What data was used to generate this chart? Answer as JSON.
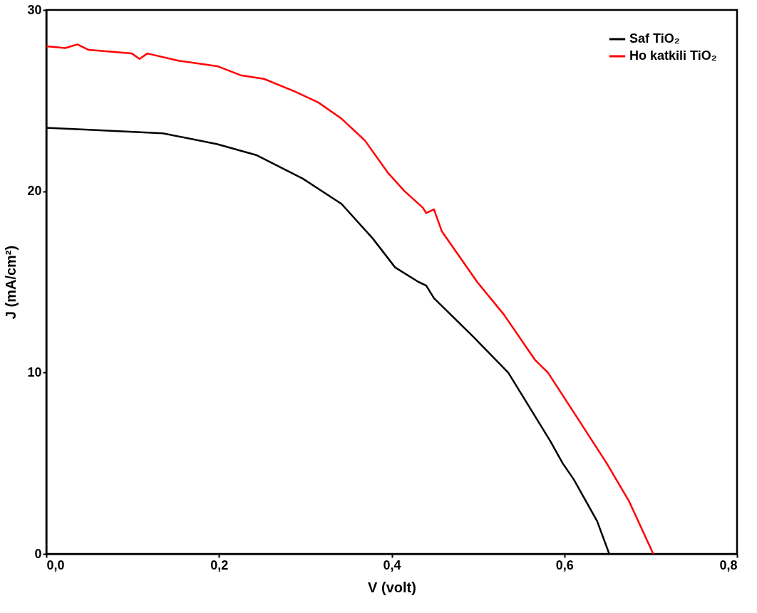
{
  "chart_data": {
    "type": "line",
    "xlabel": "V (volt)",
    "ylabel": "J (mA/cm²)",
    "xlim": [
      0,
      0.8
    ],
    "ylim": [
      0,
      30
    ],
    "xticks": [
      {
        "value": 0,
        "label": "0,0"
      },
      {
        "value": 0.2,
        "label": "0,2"
      },
      {
        "value": 0.4,
        "label": "0,4"
      },
      {
        "value": 0.6,
        "label": "0,6"
      },
      {
        "value": 0.8,
        "label": "0,8"
      }
    ],
    "yticks": [
      0,
      10,
      20,
      30
    ],
    "grid": false,
    "legend": "top right",
    "marker": "none",
    "line_style": "solid",
    "series": [
      {
        "name": "Saf TiO₂",
        "color": "#000000",
        "x": [
          0,
          0.045,
          0.135,
          0.198,
          0.243,
          0.297,
          0.342,
          0.378,
          0.404,
          0.431,
          0.44,
          0.449,
          0.494,
          0.535,
          0.584,
          0.598,
          0.611,
          0.638,
          0.652
        ],
        "values": [
          23.5,
          23.4,
          23.2,
          22.6,
          22.0,
          20.7,
          19.3,
          17.4,
          15.8,
          15.0,
          14.8,
          14.1,
          12.0,
          10.0,
          6.2,
          5.0,
          4.1,
          1.8,
          0
        ]
      },
      {
        "name": "Ho katkili TiO₂",
        "color": "#ff0000",
        "x": [
          0,
          0.022,
          0.036,
          0.049,
          0.099,
          0.108,
          0.117,
          0.153,
          0.198,
          0.225,
          0.252,
          0.288,
          0.315,
          0.342,
          0.369,
          0.396,
          0.415,
          0.436,
          0.44,
          0.449,
          0.458,
          0.499,
          0.53,
          0.566,
          0.581,
          0.611,
          0.649,
          0.675,
          0.703
        ],
        "values": [
          28.0,
          27.9,
          28.1,
          27.8,
          27.6,
          27.3,
          27.6,
          27.2,
          26.9,
          26.4,
          26.2,
          25.5,
          24.9,
          24.0,
          22.8,
          21.0,
          20.0,
          19.1,
          18.8,
          19.0,
          17.8,
          15.0,
          13.2,
          10.7,
          10.0,
          7.8,
          5.0,
          2.9,
          0
        ]
      }
    ]
  }
}
